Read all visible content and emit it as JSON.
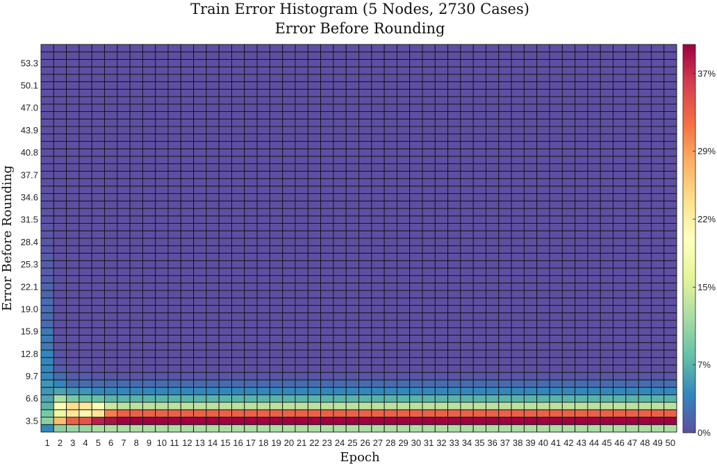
{
  "chart_data": {
    "type": "heatmap",
    "title": "Train Error Histogram (5 Nodes, 2730 Cases)",
    "subtitle": "Error Before Rounding",
    "xlabel": "Epoch",
    "ylabel": "Error Before Rounding",
    "epochs": [
      1,
      2,
      3,
      4,
      5,
      6,
      7,
      8,
      9,
      10,
      11,
      12,
      13,
      14,
      15,
      16,
      17,
      18,
      19,
      20,
      21,
      22,
      23,
      24,
      25,
      26,
      27,
      28,
      29,
      30,
      31,
      32,
      33,
      34,
      35,
      36,
      37,
      38,
      39,
      40,
      41,
      42,
      43,
      44,
      45,
      46,
      47,
      48,
      49,
      50
    ],
    "bins_count": 52,
    "y_bin_min": 2.5,
    "y_bin_max": 54.4,
    "y_tick_labels": [
      "3.5",
      "6.6",
      "9.7",
      "12.8",
      "15.9",
      "19.0",
      "22.1",
      "25.3",
      "28.4",
      "31.5",
      "34.6",
      "37.7",
      "40.8",
      "43.9",
      "47.0",
      "50.1",
      "53.3"
    ],
    "colorbar": {
      "min": 0,
      "max": 40,
      "tick_values": [
        0,
        7,
        15,
        22,
        29,
        37
      ],
      "tick_labels": [
        "0%",
        "7%",
        "15%",
        "22%",
        "29%",
        "37%"
      ]
    },
    "colormap_stops": [
      "#5e4fa2",
      "#3288bd",
      "#66c2a5",
      "#abdda4",
      "#e6f598",
      "#ffffbf",
      "#fee08b",
      "#fdae61",
      "#f46d43",
      "#d53e4f",
      "#9e0142"
    ],
    "column_profiles_percent": {
      "epoch_1": [
        4,
        10,
        9,
        7,
        6,
        5,
        5,
        4,
        4,
        4,
        4,
        3,
        3,
        3,
        2,
        2,
        2,
        2,
        1.5,
        1.5,
        1,
        1,
        1,
        1,
        0.5,
        0.5,
        0.5,
        0.5,
        0.3,
        0.3,
        0.2,
        0.2,
        0.2,
        0.1,
        0.1,
        0.1
      ],
      "epoch_2": [
        10,
        27,
        17,
        19,
        12,
        6,
        4,
        2,
        1,
        0.5,
        0.3,
        0.2,
        0.1
      ],
      "epoch_3": [
        11,
        33,
        23,
        24,
        9,
        5,
        2,
        1,
        0.3
      ],
      "epoch_4": [
        11,
        34,
        21,
        23,
        8,
        5,
        2,
        1,
        0.3
      ],
      "epoch_5": [
        12,
        38,
        23,
        19,
        8,
        4,
        2,
        0.5
      ],
      "epoch_6": [
        12,
        39,
        31,
        14,
        7,
        4,
        2,
        0.5
      ],
      "epoch_7_to_50": [
        12,
        40,
        33,
        13,
        7,
        4,
        2,
        0.5
      ]
    }
  }
}
